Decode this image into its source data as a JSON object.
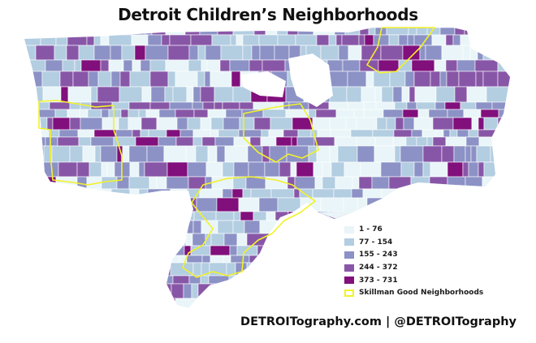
{
  "title": "Detroit Children’s Neighborhoods",
  "legend": {
    "items": [
      {
        "label": "1 - 76",
        "color": "#e9f5f8"
      },
      {
        "label": "77 - 154",
        "color": "#b3cde1"
      },
      {
        "label": "155 - 243",
        "color": "#8c92c6"
      },
      {
        "label": "244 - 372",
        "color": "#8856a7"
      },
      {
        "label": "373 - 731",
        "color": "#810f7c"
      }
    ],
    "outline_label": "Skillman Good Neighborhoods",
    "outline_color": "#f2f227"
  },
  "credit": "DETROITography.com | @DETROITography"
}
